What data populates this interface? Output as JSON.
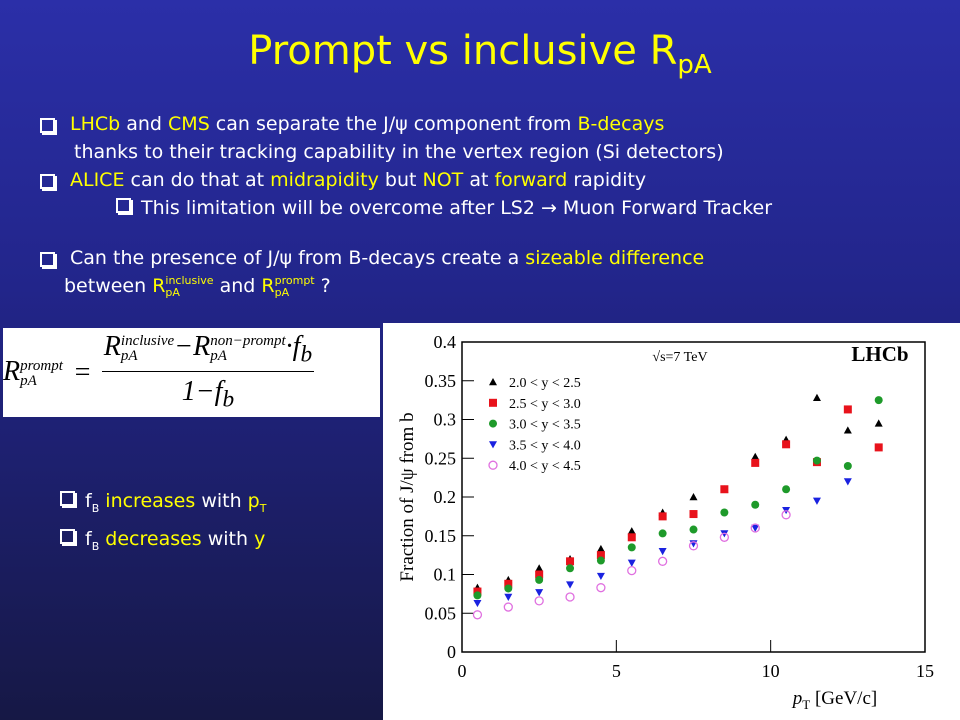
{
  "slide": {
    "title": {
      "t": "Prompt vs inclusive R",
      "sub": "pA"
    },
    "bullets": [
      {
        "level": 1,
        "lines": [
          [
            {
              "t": "LHCb",
              "hl": true
            },
            {
              "t": " and ",
              "hl": false
            },
            {
              "t": "CMS",
              "hl": true
            },
            {
              "t": " can separate the J/ψ component from ",
              "hl": false
            },
            {
              "t": "B-decays",
              "hl": true
            }
          ],
          [
            {
              "t": "thanks to their tracking capability in the vertex region (Si detectors)",
              "hl": false
            }
          ]
        ]
      },
      {
        "level": 1,
        "lines": [
          [
            {
              "t": "ALICE",
              "hl": true
            },
            {
              "t": " can do that at ",
              "hl": false
            },
            {
              "t": "midrapidity",
              "hl": true
            },
            {
              "t": " but ",
              "hl": false
            },
            {
              "t": "NOT",
              "hl": true
            },
            {
              "t": " at ",
              "hl": false
            },
            {
              "t": "forward",
              "hl": true
            },
            {
              "t": " rapidity",
              "hl": false
            }
          ]
        ]
      },
      {
        "level": 2,
        "lines": [
          [
            {
              "t": "This limitation will be overcome after LS2 → Muon Forward Tracker",
              "hl": false
            }
          ]
        ]
      },
      {
        "level": 1,
        "gap": true,
        "lines": [
          [
            {
              "t": "Can the presence of J/ψ from B-decays create a ",
              "hl": false
            },
            {
              "t": "sizeable difference",
              "hl": true
            }
          ],
          [
            {
              "t": "between  ",
              "hl": false
            },
            {
              "t": "R",
              "sub": "pA",
              "sup": "inclusive",
              "hl": true
            },
            {
              "t": " and ",
              "hl": false
            },
            {
              "t": "R",
              "sub": "pA",
              "sup": "prompt",
              "hl": true
            },
            {
              "t": " ?",
              "hl": false
            }
          ]
        ]
      }
    ],
    "formula": {
      "lhs": {
        "t": "R",
        "sup": "prompt",
        "sub": "pA"
      },
      "eq": "=",
      "num": [
        {
          "t": "R",
          "sup": "inclusive",
          "sub": "pA"
        },
        {
          "t": "−"
        },
        {
          "t": "R",
          "sup": "non−prompt",
          "sub": "pA"
        },
        {
          "t": "·"
        },
        {
          "t": "f",
          "sub": "b"
        }
      ],
      "den": [
        {
          "t": "1−"
        },
        {
          "t": "f",
          "sub": "b"
        }
      ]
    },
    "notes": [
      [
        {
          "t": "f",
          "sub": "B",
          "hl": false
        },
        {
          "t": " increases",
          "hl": true
        },
        {
          "t": " with ",
          "hl": false
        },
        {
          "t": "p",
          "sub": "T",
          "hl": true
        }
      ],
      [
        {
          "t": "f",
          "sub": "B",
          "hl": false
        },
        {
          "t": " decreases",
          "hl": true
        },
        {
          "t": " with ",
          "hl": false
        },
        {
          "t": "y",
          "hl": true
        }
      ]
    ]
  },
  "chart_data": {
    "type": "scatter",
    "y_label": "Fraction of J/ψ from b",
    "x_label": {
      "t": "p",
      "sub": "T",
      "unit": " [GeV/c]"
    },
    "annotations": [
      "√s=7 TeV",
      "LHCb"
    ],
    "x": [
      0.5,
      1.5,
      2.5,
      3.5,
      4.5,
      5.5,
      6.5,
      7.5,
      8.5,
      9.5,
      10.5,
      11.5,
      12.5,
      13.5
    ],
    "series": [
      {
        "name": "2.0 < y < 2.5",
        "color": "#000000",
        "marker": "triangle-up",
        "values": [
          0.083,
          0.093,
          0.108,
          0.12,
          0.133,
          0.156,
          0.18,
          0.2,
          0.21,
          0.252,
          0.274,
          0.328,
          0.286,
          0.295
        ]
      },
      {
        "name": "2.5 < y < 3.0",
        "color": "#e8121b",
        "marker": "square",
        "values": [
          0.078,
          0.088,
          0.1,
          0.117,
          0.125,
          0.148,
          0.175,
          0.178,
          0.21,
          0.244,
          0.268,
          0.245,
          0.313,
          0.264
        ]
      },
      {
        "name": "3.0 < y < 3.5",
        "color": "#1e9a2a",
        "marker": "circle",
        "values": [
          0.073,
          0.082,
          0.093,
          0.108,
          0.118,
          0.135,
          0.153,
          0.158,
          0.18,
          0.19,
          0.21,
          0.247,
          0.24,
          0.325
        ]
      },
      {
        "name": "3.5 < y < 4.0",
        "color": "#1a22e0",
        "marker": "triangle-down",
        "values": [
          0.063,
          0.071,
          0.077,
          0.087,
          0.098,
          0.115,
          0.13,
          0.14,
          0.153,
          0.16,
          0.183,
          0.195,
          0.22,
          null
        ]
      },
      {
        "name": "4.0 < y < 4.5",
        "color": "#e070e0",
        "marker": "open-circle",
        "values": [
          0.048,
          0.058,
          0.066,
          0.071,
          0.083,
          0.105,
          0.117,
          0.137,
          0.148,
          0.16,
          0.177,
          null,
          null,
          null
        ]
      }
    ],
    "xlim": [
      0,
      15
    ],
    "xticks": [
      0,
      5,
      10,
      15
    ],
    "ylim": [
      0,
      0.4
    ],
    "yticks": [
      0,
      0.05,
      0.1,
      0.15,
      0.2,
      0.25,
      0.3,
      0.35,
      0.4
    ],
    "legend": "upper left"
  }
}
